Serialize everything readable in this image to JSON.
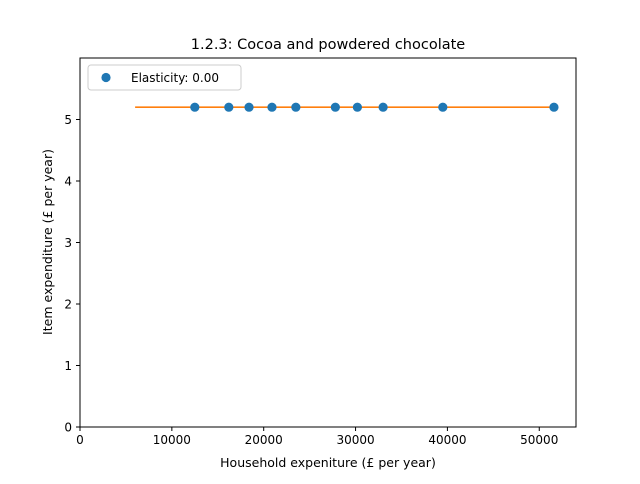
{
  "chart_data": {
    "type": "scatter",
    "title": "1.2.3: Cocoa and powdered chocolate",
    "xlabel": "Household expeniture (£ per year)",
    "ylabel": "Item expenditure (£ per year)",
    "xlim": [
      0,
      54000
    ],
    "ylim": [
      0,
      6
    ],
    "xticks": [
      0,
      10000,
      20000,
      30000,
      40000,
      50000
    ],
    "yticks": [
      0,
      1,
      2,
      3,
      4,
      5
    ],
    "grid": false,
    "legend_position": "upper-left",
    "series": [
      {
        "name": "Elasticity: 0.00",
        "kind": "scatter",
        "color": "#1f77b4",
        "marker": "circle",
        "x": [
          12500,
          16200,
          18400,
          20900,
          23500,
          27800,
          30200,
          33000,
          39500,
          51600
        ],
        "y": [
          5.2,
          5.2,
          5.2,
          5.2,
          5.2,
          5.2,
          5.2,
          5.2,
          5.2,
          5.2
        ]
      },
      {
        "kind": "line",
        "color": "#ff7f0e",
        "x": [
          6000,
          51600
        ],
        "y": [
          5.2,
          5.2
        ]
      }
    ]
  }
}
